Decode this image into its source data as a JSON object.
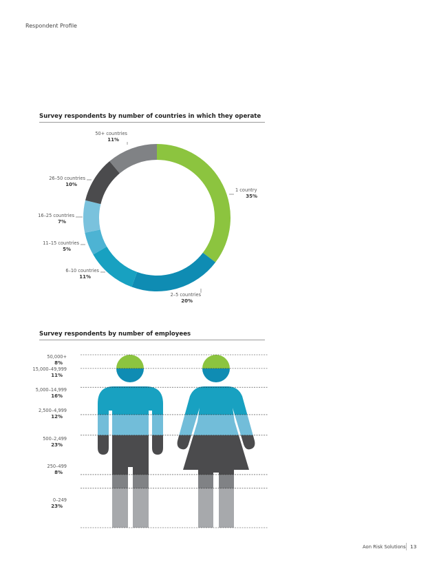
{
  "page": {
    "section_label": "Respondent Profile",
    "footer_label": "Aon Risk Solutions",
    "page_number": "13"
  },
  "chart_data": [
    {
      "type": "pie",
      "title": "Survey respondents by number of countries in which they operate",
      "categories": [
        "1 country",
        "2–5 countries",
        "6–10 countries",
        "11–15 countries",
        "16–25 countries",
        "26–50 countries",
        "50+ countries"
      ],
      "values": [
        35,
        20,
        11,
        5,
        7,
        10,
        11
      ],
      "value_labels": [
        "35%",
        "20%",
        "11%",
        "5%",
        "7%",
        "10%",
        "11%"
      ],
      "colors": [
        "#8cc43f",
        "#0f8cb3",
        "#18a1c1",
        "#4db3d3",
        "#7ac2dd",
        "#4b4b4d",
        "#808285"
      ],
      "donut": true,
      "start": "top, clockwise"
    },
    {
      "type": "bar",
      "title": "Survey respondents by number of employees",
      "categories": [
        "50,000+",
        "15,000–49,999",
        "5,000–14,999",
        "2,500–4,999",
        "500–2,499",
        "250–499",
        "0–249"
      ],
      "values": [
        8,
        11,
        16,
        12,
        23,
        8,
        23
      ],
      "value_labels": [
        "8%",
        "11%",
        "16%",
        "12%",
        "23%",
        "8%",
        "23%"
      ],
      "colors": [
        "#8cc43f",
        "#0f8cb3",
        "#18a1c1",
        "#72bdd9",
        "#4b4b4d",
        "#808285",
        "#a7a9ac"
      ],
      "orientation": "vertical stack (pictogram)",
      "stack_order": "top to bottom"
    }
  ]
}
